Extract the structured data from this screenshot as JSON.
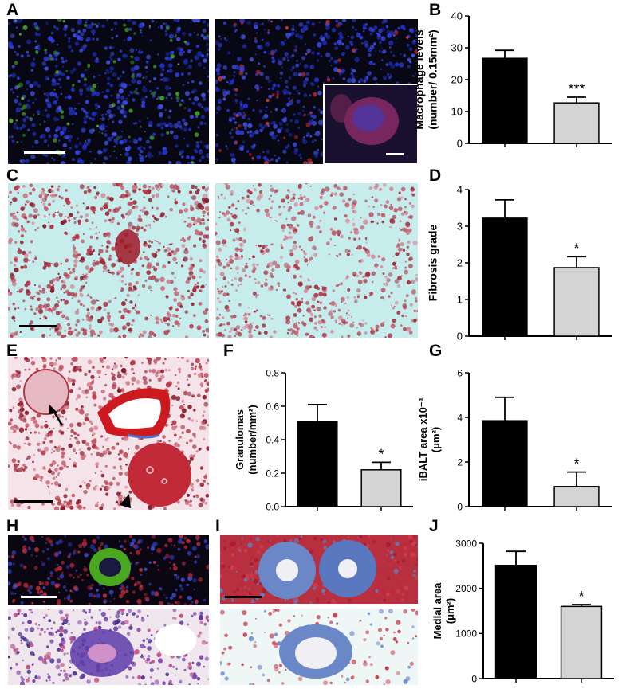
{
  "panel_labels": [
    "A",
    "B",
    "C",
    "D",
    "E",
    "F",
    "G",
    "H",
    "I",
    "J"
  ],
  "colors": {
    "bar_dark": "#000000",
    "bar_light": "#d4d4d4",
    "fluor_background": "#080814",
    "nuclei_blue": "#2030c8",
    "macrophage_green": "#3a9a20",
    "macrophage_red": "#c02830",
    "stain_pink": "#c0485a",
    "stain_background": "#c6ecec",
    "trichrome_blue": "#5070c0"
  },
  "annotations": {
    "arrow": "arrow-icon",
    "arrowhead": "arrowhead-icon",
    "scale_bar": "scale-bar"
  },
  "chart_data": [
    {
      "id": "B",
      "type": "bar",
      "ylabel_line1": "Macrophage levels",
      "ylabel_line2": "(number/ 0.15mm²)",
      "categories": [
        "",
        ""
      ],
      "values": [
        26.7,
        12.7
      ],
      "errors": [
        2.5,
        1.8
      ],
      "ylim": [
        0,
        40
      ],
      "yticks": [
        "0",
        "10",
        "20",
        "30",
        "40"
      ],
      "significance": [
        "",
        "***"
      ]
    },
    {
      "id": "D",
      "type": "bar",
      "ylabel_line1": "Fibrosis grade",
      "ylabel_line2": "",
      "categories": [
        "",
        ""
      ],
      "values": [
        3.22,
        1.87
      ],
      "errors": [
        0.5,
        0.3
      ],
      "ylim": [
        0,
        4
      ],
      "yticks": [
        "0",
        "1",
        "2",
        "3",
        "4"
      ],
      "significance": [
        "",
        "*"
      ]
    },
    {
      "id": "F",
      "type": "bar",
      "ylabel_line1": "Granulomas",
      "ylabel_line2": "(number/mm²)",
      "categories": [
        "",
        ""
      ],
      "values": [
        0.51,
        0.22
      ],
      "errors": [
        0.1,
        0.045
      ],
      "ylim": [
        0,
        0.8
      ],
      "yticks": [
        "0.0",
        "0.2",
        "0.4",
        "0.6",
        "0.8"
      ],
      "significance": [
        "",
        "*"
      ]
    },
    {
      "id": "G",
      "type": "bar",
      "ylabel_line1": "iBALT area x10⁻³",
      "ylabel_line2": "(μm²)",
      "categories": [
        "",
        ""
      ],
      "values": [
        3.85,
        0.9
      ],
      "errors": [
        1.05,
        0.65
      ],
      "ylim": [
        0,
        6
      ],
      "yticks": [
        "0",
        "2",
        "4",
        "6"
      ],
      "significance": [
        "",
        "*"
      ]
    },
    {
      "id": "J",
      "type": "bar",
      "ylabel_line1": "Medial area",
      "ylabel_line2": "(μm²)",
      "categories": [
        "",
        ""
      ],
      "values": [
        2510,
        1600
      ],
      "errors": [
        310,
        40
      ],
      "ylim": [
        0,
        3000
      ],
      "yticks": [
        "0",
        "1000",
        "2000",
        "3000"
      ],
      "significance": [
        "",
        "*"
      ]
    }
  ]
}
